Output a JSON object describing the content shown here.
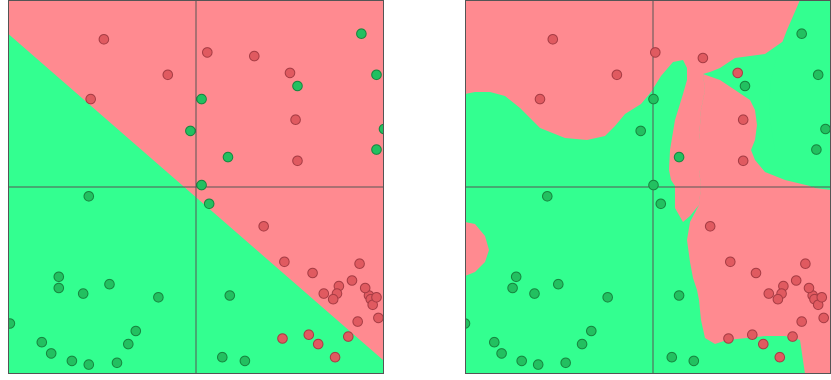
{
  "palette": {
    "red_region": "#ff8a90",
    "green_region": "#33ff90",
    "red_point": "#e05a60",
    "red_point_edge": "#a63c44",
    "green_point": "#22c060",
    "green_point_edge": "#17853f",
    "axis_line": "#555555"
  },
  "chart_data": [
    {
      "type": "scatter",
      "title": "",
      "xlabel": "",
      "ylabel": "",
      "xlim": [
        -1,
        1
      ],
      "ylim": [
        -1,
        1
      ],
      "axis_lines": [
        {
          "x": 0
        },
        {
          "y": 0
        }
      ],
      "grid": false,
      "legend": "none",
      "decision_boundary": {
        "kind": "linear",
        "label_positive_side": "red",
        "line": [
          {
            "x": -1.0,
            "y": 0.82
          },
          {
            "x": 1.0,
            "y": -0.93
          }
        ]
      },
      "series": [
        {
          "class": "red",
          "points": [
            [
              -0.49,
              0.79
            ],
            [
              -0.15,
              0.6
            ],
            [
              -0.56,
              0.47
            ],
            [
              0.06,
              0.72
            ],
            [
              0.31,
              0.7
            ],
            [
              0.5,
              0.61
            ],
            [
              0.53,
              0.36
            ],
            [
              0.54,
              0.14
            ],
            [
              0.36,
              -0.21
            ],
            [
              0.47,
              -0.4
            ],
            [
              0.62,
              -0.46
            ],
            [
              0.87,
              -0.41
            ],
            [
              0.46,
              -0.81
            ],
            [
              0.6,
              -0.79
            ],
            [
              0.65,
              -0.84
            ],
            [
              0.74,
              -0.91
            ],
            [
              0.81,
              -0.8
            ],
            [
              0.83,
              -0.5
            ],
            [
              0.68,
              -0.57
            ],
            [
              0.76,
              -0.53
            ],
            [
              0.75,
              -0.57
            ],
            [
              0.73,
              -0.6
            ],
            [
              0.92,
              -0.58
            ],
            [
              0.9,
              -0.54
            ],
            [
              0.93,
              -0.6
            ],
            [
              0.94,
              -0.63
            ],
            [
              0.96,
              -0.59
            ],
            [
              0.97,
              -0.7
            ],
            [
              0.86,
              -0.72
            ]
          ]
        },
        {
          "class": "green",
          "points": [
            [
              0.88,
              0.82
            ],
            [
              0.96,
              0.6
            ],
            [
              1.0,
              0.31
            ],
            [
              0.96,
              0.2
            ],
            [
              0.54,
              0.54
            ],
            [
              0.03,
              0.47
            ],
            [
              -0.03,
              0.3
            ],
            [
              0.17,
              0.16
            ],
            [
              0.03,
              0.01
            ],
            [
              0.07,
              -0.09
            ],
            [
              -0.57,
              -0.05
            ],
            [
              -0.2,
              -0.59
            ],
            [
              -0.99,
              -0.73
            ],
            [
              -0.82,
              -0.83
            ],
            [
              -0.77,
              -0.89
            ],
            [
              -0.66,
              -0.93
            ],
            [
              -0.57,
              -0.95
            ],
            [
              -0.42,
              -0.94
            ],
            [
              -0.32,
              -0.77
            ],
            [
              -0.36,
              -0.84
            ],
            [
              -0.73,
              -0.48
            ],
            [
              -0.46,
              -0.52
            ],
            [
              -0.6,
              -0.57
            ],
            [
              0.18,
              -0.58
            ],
            [
              0.26,
              -0.93
            ],
            [
              0.14,
              -0.91
            ],
            [
              -0.73,
              -0.54
            ]
          ]
        }
      ]
    },
    {
      "type": "scatter",
      "title": "",
      "xlabel": "",
      "ylabel": "",
      "xlim": [
        -1,
        1
      ],
      "ylim": [
        -1,
        1
      ],
      "axis_lines": [
        {
          "x": 0
        },
        {
          "y": 0
        }
      ],
      "grid": false,
      "legend": "none",
      "decision_boundary": {
        "kind": "nonlinear",
        "label_positive_side": "red"
      },
      "series": [
        {
          "class": "red",
          "points": [
            [
              -0.52,
              0.79
            ],
            [
              -0.17,
              0.6
            ],
            [
              -0.59,
              0.47
            ],
            [
              0.04,
              0.72
            ],
            [
              0.3,
              0.69
            ],
            [
              0.49,
              0.61
            ],
            [
              0.52,
              0.36
            ],
            [
              0.52,
              0.14
            ],
            [
              0.34,
              -0.21
            ],
            [
              0.45,
              -0.4
            ],
            [
              0.59,
              -0.46
            ],
            [
              0.86,
              -0.41
            ],
            [
              0.44,
              -0.81
            ],
            [
              0.57,
              -0.79
            ],
            [
              0.63,
              -0.84
            ],
            [
              0.72,
              -0.91
            ],
            [
              0.79,
              -0.8
            ],
            [
              0.81,
              -0.5
            ],
            [
              0.66,
              -0.57
            ],
            [
              0.74,
              -0.53
            ],
            [
              0.73,
              -0.57
            ],
            [
              0.71,
              -0.6
            ],
            [
              0.9,
              -0.58
            ],
            [
              0.88,
              -0.54
            ],
            [
              0.91,
              -0.6
            ],
            [
              0.93,
              -0.63
            ],
            [
              0.95,
              -0.59
            ],
            [
              0.96,
              -0.7
            ],
            [
              0.84,
              -0.72
            ]
          ]
        },
        {
          "class": "green",
          "points": [
            [
              0.84,
              0.82
            ],
            [
              0.93,
              0.6
            ],
            [
              0.97,
              0.31
            ],
            [
              0.92,
              0.2
            ],
            [
              0.53,
              0.54
            ],
            [
              0.03,
              0.47
            ],
            [
              -0.04,
              0.3
            ],
            [
              0.17,
              0.16
            ],
            [
              0.03,
              0.01
            ],
            [
              0.07,
              -0.09
            ],
            [
              -0.55,
              -0.05
            ],
            [
              -0.22,
              -0.59
            ],
            [
              -1.0,
              -0.73
            ],
            [
              -0.84,
              -0.83
            ],
            [
              -0.8,
              -0.89
            ],
            [
              -0.69,
              -0.93
            ],
            [
              -0.6,
              -0.95
            ],
            [
              -0.45,
              -0.94
            ],
            [
              -0.31,
              -0.77
            ],
            [
              -0.36,
              -0.84
            ],
            [
              -0.72,
              -0.48
            ],
            [
              -0.49,
              -0.52
            ],
            [
              -0.62,
              -0.57
            ],
            [
              0.17,
              -0.58
            ],
            [
              0.25,
              -0.93
            ],
            [
              0.13,
              -0.91
            ],
            [
              -0.74,
              -0.54
            ]
          ]
        }
      ]
    }
  ]
}
